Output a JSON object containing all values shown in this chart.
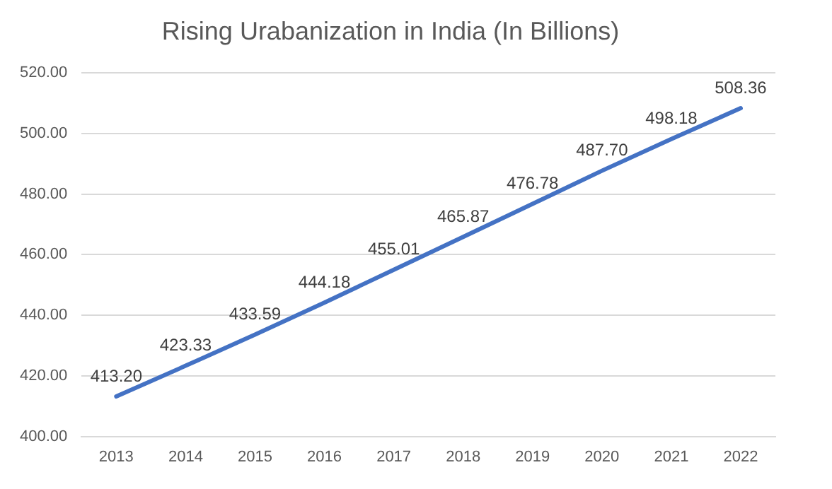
{
  "chart_data": {
    "type": "line",
    "title": "Rising Urabanization in India (In Billions)",
    "categories": [
      "2013",
      "2014",
      "2015",
      "2016",
      "2017",
      "2018",
      "2019",
      "2020",
      "2021",
      "2022"
    ],
    "values": [
      413.2,
      423.33,
      433.59,
      444.18,
      455.01,
      465.87,
      476.78,
      487.7,
      498.18,
      508.36
    ],
    "value_labels": [
      "413.20",
      "423.33",
      "433.59",
      "444.18",
      "455.01",
      "465.87",
      "476.78",
      "487.70",
      "498.18",
      "508.36"
    ],
    "color": "#4472c4",
    "ylim": [
      400,
      520
    ],
    "yticks": [
      {
        "value": 400,
        "label": "400.00"
      },
      {
        "value": 420,
        "label": "420.00"
      },
      {
        "value": 440,
        "label": "440.00"
      },
      {
        "value": 460,
        "label": "460.00"
      },
      {
        "value": 480,
        "label": "480.00"
      },
      {
        "value": 500,
        "label": "500.00"
      },
      {
        "value": 520,
        "label": "520.00"
      }
    ],
    "grid": "y",
    "legend": false,
    "marker": "none",
    "line_style": "solid"
  }
}
